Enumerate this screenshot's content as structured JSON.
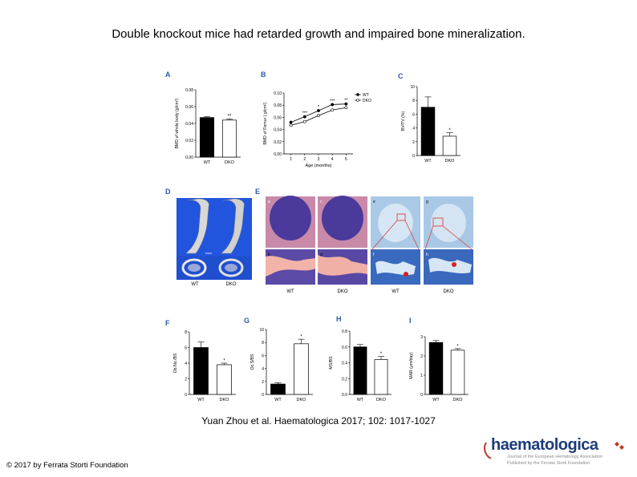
{
  "slide": {
    "title": "Double knockout mice had retarded growth and impaired bone mineralization.",
    "citation": "Yuan Zhou et al. Haematologica 2017; 102: 1017-1027",
    "copyright": "© 2017 by Ferrata Storti Foundation",
    "logo": {
      "name": "haematologica",
      "line1": "Journal of the European Hematology Association",
      "line2": "Published by the Ferrata Storti Foundation"
    }
  },
  "panels": {
    "A": "A",
    "B": "B",
    "C": "C",
    "D": "D",
    "E": "E",
    "F": "F",
    "G": "G",
    "H": "H",
    "I": "I"
  },
  "histology": {
    "sublabels": [
      "a",
      "c",
      "e",
      "g",
      "b",
      "d",
      "f",
      "h"
    ],
    "xlabels": [
      "WT",
      "DKO",
      "WT",
      "DKO"
    ]
  },
  "microct": {
    "xlabels": [
      "WT",
      "DKO"
    ]
  },
  "chart_data": [
    {
      "id": "A",
      "type": "bar",
      "categories": [
        "WT",
        "DKO"
      ],
      "values": [
        0.047,
        0.044
      ],
      "errors": [
        0.001,
        0.0015
      ],
      "significance": [
        "",
        "**"
      ],
      "ylabel": "BMD of whole body (g/cm²)",
      "ylim": [
        0,
        0.08
      ],
      "yticks": [
        "0.00",
        "0.02",
        "0.04",
        "0.06",
        "0.08"
      ],
      "fills": [
        "#000000",
        "#ffffff"
      ]
    },
    {
      "id": "B",
      "type": "line",
      "x": [
        1,
        2,
        3,
        4,
        5
      ],
      "series": [
        {
          "name": "WT",
          "values": [
            0.052,
            0.061,
            0.071,
            0.081,
            0.082
          ],
          "marker": "filled"
        },
        {
          "name": "DKO",
          "values": [
            0.047,
            0.053,
            0.063,
            0.072,
            0.076
          ],
          "marker": "open"
        }
      ],
      "significance": [
        "",
        "***",
        "*",
        "***",
        "**"
      ],
      "xlabel": "Age (months)",
      "ylabel": "BMD of Femur ( g/cm²)",
      "ylim": [
        0,
        0.1
      ],
      "yticks": [
        "0.00",
        "0.02",
        "0.04",
        "0.06",
        "0.08",
        "0.10"
      ],
      "xticks": [
        "1",
        "2",
        "3",
        "4",
        "5"
      ],
      "legend": "top-right"
    },
    {
      "id": "C",
      "type": "bar",
      "categories": [
        "WT",
        "DKO"
      ],
      "values": [
        7.0,
        2.8
      ],
      "errors": [
        1.5,
        0.5
      ],
      "significance": [
        "",
        "*"
      ],
      "ylabel": "BV/TV (%)",
      "ylim": [
        0,
        10
      ],
      "yticks": [
        "0",
        "2",
        "4",
        "6",
        "8",
        "10"
      ],
      "fills": [
        "#000000",
        "#ffffff"
      ]
    },
    {
      "id": "F",
      "type": "bar",
      "categories": [
        "WT",
        "DKO"
      ],
      "values": [
        6.0,
        3.8
      ],
      "errors": [
        0.7,
        0.2
      ],
      "significance": [
        "",
        "*"
      ],
      "ylabel": "Ob.No./BS",
      "ylim": [
        0,
        8
      ],
      "yticks": [
        "0",
        "2",
        "4",
        "6",
        "8"
      ],
      "fills": [
        "#000000",
        "#ffffff"
      ]
    },
    {
      "id": "G",
      "type": "bar",
      "categories": [
        "WT",
        "DKO"
      ],
      "values": [
        1.6,
        7.8
      ],
      "errors": [
        0.2,
        0.7
      ],
      "significance": [
        "",
        "*"
      ],
      "ylabel": "Oc.S/BS",
      "ylim": [
        0,
        10
      ],
      "yticks": [
        "0",
        "2",
        "4",
        "6",
        "8",
        "10"
      ],
      "fills": [
        "#000000",
        "#ffffff"
      ]
    },
    {
      "id": "H",
      "type": "bar",
      "categories": [
        "WT",
        "DKO"
      ],
      "values": [
        0.6,
        0.44
      ],
      "errors": [
        0.03,
        0.04
      ],
      "significance": [
        "",
        "*"
      ],
      "ylabel": "MS/BS",
      "ylim": [
        0,
        0.8
      ],
      "yticks": [
        "0.0",
        "0.2",
        "0.4",
        "0.6",
        "0.8"
      ],
      "fills": [
        "#000000",
        "#ffffff"
      ]
    },
    {
      "id": "I",
      "type": "bar",
      "categories": [
        "WT",
        "DKO"
      ],
      "values": [
        2.7,
        2.3
      ],
      "errors": [
        0.1,
        0.08
      ],
      "significance": [
        "",
        "*"
      ],
      "ylabel": "MAR (μm/day)",
      "ylim": [
        0,
        3
      ],
      "yticks": [
        "0",
        "1",
        "2",
        "3"
      ],
      "fills": [
        "#000000",
        "#ffffff"
      ]
    }
  ]
}
